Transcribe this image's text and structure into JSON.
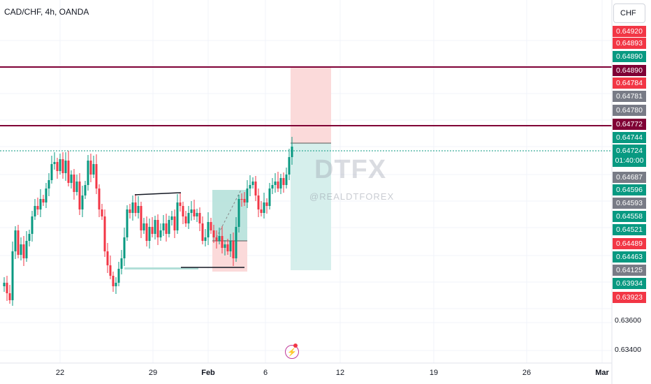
{
  "header": {
    "title": "CAD/CHF, 4h, OANDA",
    "currency": "CHF"
  },
  "watermark": {
    "main": "DTFX",
    "sub": "@REALDTFOREX"
  },
  "toolbar_icon": "lightning-bolt-icon",
  "colors": {
    "up": "#089981",
    "down": "#f23645",
    "resistance": "#800035",
    "current_price_line": "#089981",
    "long_tp_zone": "#d6efec",
    "long_sl_zone": "#fbdada"
  },
  "current_price": {
    "value": "0.64724",
    "countdown": "01:40:00"
  },
  "price_labels": [
    {
      "text": "0.64920",
      "style": "red"
    },
    {
      "text": "0.64893",
      "style": "red"
    },
    {
      "text": "0.64890",
      "style": "green"
    },
    {
      "text": "0.64890",
      "style": "purple"
    },
    {
      "text": "0.64784",
      "style": "red"
    },
    {
      "text": "0.64781",
      "style": "gray"
    },
    {
      "text": "0.64780",
      "style": "gray"
    },
    {
      "text": "0.64772",
      "style": "purple"
    },
    {
      "text": "0.64744",
      "style": "green"
    },
    {
      "text": "0.64687",
      "style": "gray"
    },
    {
      "text": "0.64596",
      "style": "green"
    },
    {
      "text": "0.64593",
      "style": "gray"
    },
    {
      "text": "0.64558",
      "style": "green"
    },
    {
      "text": "0.64521",
      "style": "green"
    },
    {
      "text": "0.64489",
      "style": "red"
    },
    {
      "text": "0.64463",
      "style": "green"
    },
    {
      "text": "0.64125",
      "style": "gray"
    },
    {
      "text": "0.63934",
      "style": "green"
    },
    {
      "text": "0.63923",
      "style": "red"
    }
  ],
  "axis_prices": [
    "0.63600",
    "0.63400"
  ],
  "x_axis": [
    {
      "text": "22",
      "bold": false
    },
    {
      "text": "29",
      "bold": false
    },
    {
      "text": "Feb",
      "bold": true
    },
    {
      "text": "6",
      "bold": false
    },
    {
      "text": "12",
      "bold": false
    },
    {
      "text": "19",
      "bold": false
    },
    {
      "text": "26",
      "bold": false
    },
    {
      "text": "Mar",
      "bold": true
    }
  ]
}
